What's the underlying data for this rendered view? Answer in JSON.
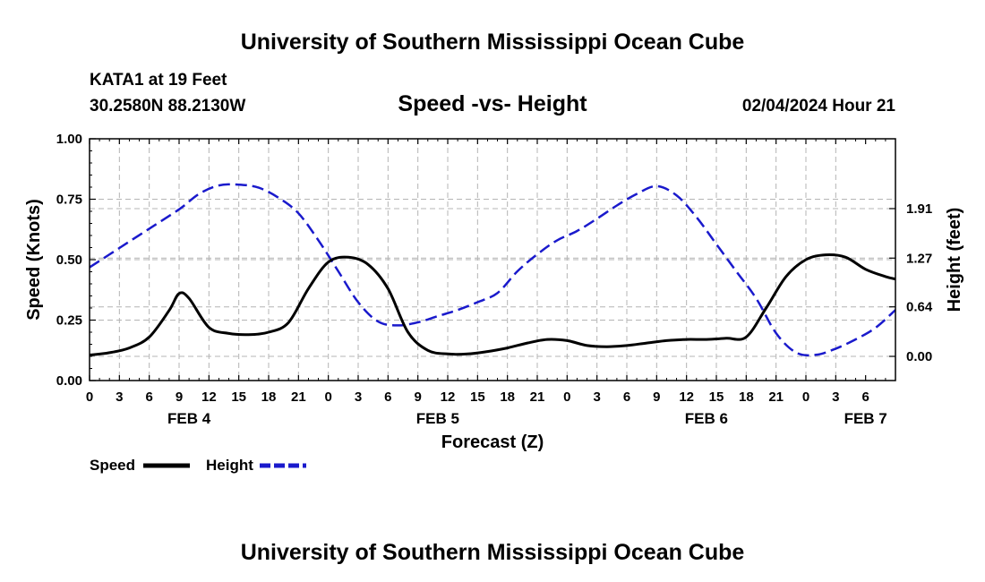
{
  "page": {
    "title_top": "University of Southern Mississippi Ocean Cube",
    "title_bottom": "University of Southern Mississippi Ocean Cube",
    "station": "KATA1 at 19 Feet",
    "coords": "30.2580N  88.2130W",
    "datetime": "02/04/2024 Hour 21"
  },
  "colors": {
    "speed": "#000000",
    "height": "#1a1acc",
    "grid": "#b4b4b4"
  },
  "chart_data": {
    "type": "line",
    "title": "Speed -vs- Height",
    "xlabel": "Forecast (Z)",
    "ylabel": "Speed (Knots)",
    "y2label": "Height (feet)",
    "ylim": [
      0,
      1.0
    ],
    "y2lim": [
      -0.3125,
      2.8125
    ],
    "yticks": [
      "0.00",
      "0.25",
      "0.50",
      "0.75",
      "1.00"
    ],
    "y2ticks": [
      "0.00",
      "0.64",
      "1.27",
      "1.91"
    ],
    "y2tick_values": [
      0.0,
      0.64,
      1.27,
      1.91
    ],
    "x_hours_range": [
      0,
      81
    ],
    "x_tick_labels": [
      "0",
      "3",
      "6",
      "9",
      "12",
      "15",
      "18",
      "21",
      "0",
      "3",
      "6",
      "9",
      "12",
      "15",
      "18",
      "21",
      "0",
      "3",
      "6",
      "9",
      "12",
      "15",
      "18",
      "21",
      "0",
      "3",
      "6"
    ],
    "dates": [
      {
        "label": "FEB 4",
        "hour": 10
      },
      {
        "label": "FEB 5",
        "hour": 35
      },
      {
        "label": "FEB 6",
        "hour": 62
      },
      {
        "label": "FEB 7",
        "hour": 78
      }
    ],
    "legend_position": "bottom-left",
    "series": [
      {
        "name": "Speed",
        "axis": "left",
        "style": "solid",
        "x": [
          0,
          2,
          4,
          6,
          8,
          9,
          10,
          12,
          14,
          16,
          18,
          20,
          22,
          24,
          26,
          28,
          30,
          32,
          34,
          36,
          38,
          40,
          42,
          44,
          46,
          48,
          50,
          52,
          54,
          56,
          58,
          60,
          62,
          64,
          66,
          68,
          70,
          72,
          74,
          76,
          78,
          80,
          81
        ],
        "values": [
          0.105,
          0.115,
          0.135,
          0.18,
          0.29,
          0.36,
          0.34,
          0.22,
          0.195,
          0.19,
          0.2,
          0.24,
          0.38,
          0.49,
          0.51,
          0.48,
          0.38,
          0.2,
          0.125,
          0.11,
          0.11,
          0.12,
          0.135,
          0.155,
          0.17,
          0.165,
          0.145,
          0.14,
          0.145,
          0.155,
          0.165,
          0.17,
          0.17,
          0.175,
          0.18,
          0.3,
          0.43,
          0.5,
          0.52,
          0.51,
          0.46,
          0.43,
          0.42
        ]
      },
      {
        "name": "Height",
        "axis": "right",
        "style": "dashed",
        "x": [
          0,
          3,
          6,
          9,
          11,
          13,
          15,
          17,
          19,
          21,
          23,
          25,
          27,
          29,
          31,
          33,
          35,
          37,
          39,
          41,
          43,
          45,
          47,
          49,
          51,
          53,
          55,
          57,
          59,
          61,
          63,
          65,
          67,
          69,
          71,
          73,
          75,
          77,
          79,
          81
        ],
        "values": [
          1.15,
          1.4,
          1.65,
          1.9,
          2.1,
          2.21,
          2.22,
          2.18,
          2.05,
          1.85,
          1.5,
          1.1,
          0.7,
          0.45,
          0.4,
          0.44,
          0.52,
          0.6,
          0.7,
          0.82,
          1.1,
          1.32,
          1.5,
          1.62,
          1.78,
          1.95,
          2.1,
          2.2,
          2.08,
          1.8,
          1.45,
          1.1,
          0.75,
          0.3,
          0.05,
          0.02,
          0.1,
          0.22,
          0.37,
          0.6
        ]
      }
    ]
  }
}
